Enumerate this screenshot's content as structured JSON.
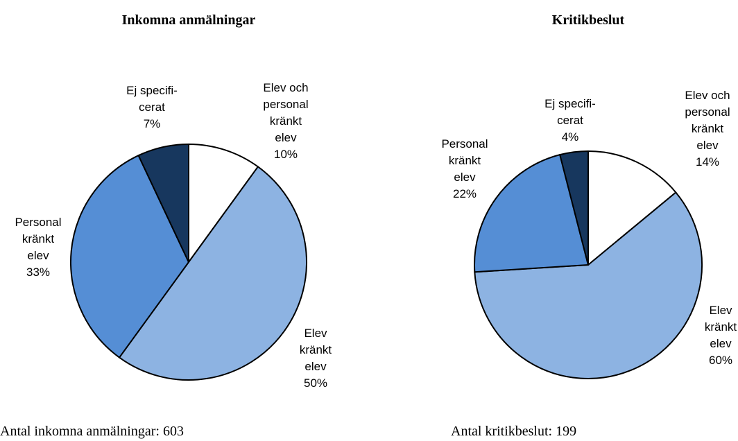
{
  "chart_data": [
    {
      "type": "pie",
      "title": "Inkomna anmälningar",
      "categories": [
        "Elev och\npersonal\nkränkt\nelev",
        "Elev\nkränkt\nelev",
        "Personal\nkränkt\nelev",
        "Ej specifi-\ncerat"
      ],
      "values": [
        10,
        50,
        33,
        7
      ],
      "value_labels": [
        "10%",
        "50%",
        "33%",
        "7%"
      ],
      "colors": [
        "#ffffff",
        "#8db3e2",
        "#558ed5",
        "#17375e"
      ],
      "note": "Antal inkomna anmälningar: 603"
    },
    {
      "type": "pie",
      "title": "Kritikbeslut",
      "categories": [
        "Elev och\npersonal\nkränkt\nelev",
        "Elev\nkränkt\nelev",
        "Personal\nkränkt\nelev",
        "Ej specifi-\ncerat"
      ],
      "values": [
        14,
        60,
        22,
        4
      ],
      "value_labels": [
        "14%",
        "60%",
        "22%",
        "4%"
      ],
      "colors": [
        "#ffffff",
        "#8db3e2",
        "#558ed5",
        "#17375e"
      ],
      "note": "Antal kritikbeslut: 199"
    }
  ]
}
